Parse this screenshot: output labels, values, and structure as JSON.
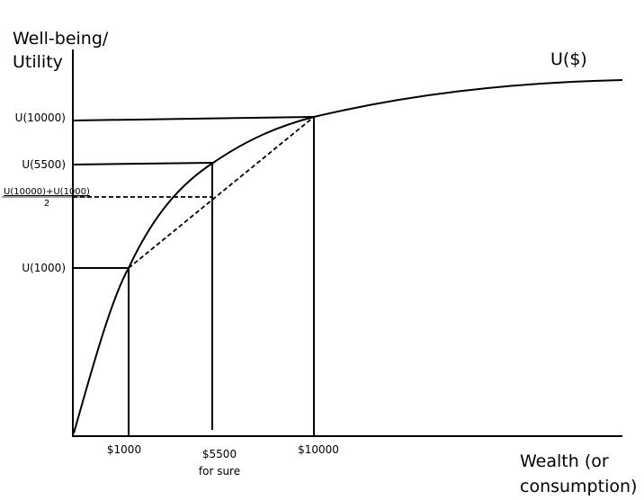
{
  "axis_labels": {
    "y": [
      "Well-being/",
      "Utility"
    ],
    "x": [
      "Wealth (or",
      "consumption)"
    ]
  },
  "curve_label": "U($)",
  "y_labels": {
    "u10000": "U(10000)",
    "u5500": "U(5500)",
    "average_numerator": "U(10000)+U(1000)",
    "average_denominator": "2",
    "u1000": "U(1000)"
  },
  "x_labels": {
    "w1000": "$1000",
    "w5500": [
      "$5500",
      "for sure"
    ],
    "w10000": "$10000"
  }
}
